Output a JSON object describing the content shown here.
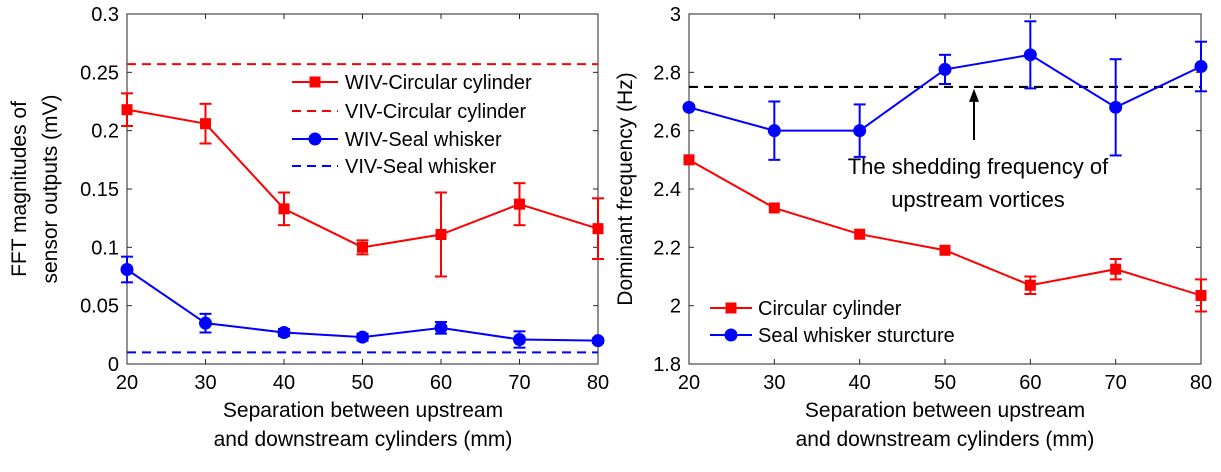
{
  "chart_data": [
    {
      "type": "line",
      "x": [
        20,
        30,
        40,
        50,
        60,
        70,
        80
      ],
      "xlim": [
        20,
        80
      ],
      "ylim": [
        0,
        0.3
      ],
      "xticks": [
        "20",
        "30",
        "40",
        "50",
        "60",
        "70",
        "80"
      ],
      "yticks": [
        "0",
        "0.05",
        "0.1",
        "0.15",
        "0.2",
        "0.25",
        "0.3"
      ],
      "xlabel": [
        "Separation between upstream",
        "and downstream cylinders (mm)"
      ],
      "ylabel": [
        "FFT magnitudes of",
        "sensor outputs (mV)"
      ],
      "legend_position": "top-right",
      "series": [
        {
          "name": "WIV-Circular cylinder",
          "color": "#ff0000",
          "marker": "square",
          "values": [
            0.218,
            0.206,
            0.133,
            0.1,
            0.111,
            0.137,
            0.116
          ],
          "errors": [
            0.014,
            0.017,
            0.014,
            0.006,
            0.036,
            0.018,
            0.026
          ]
        },
        {
          "name": "VIV-Circular cylinder",
          "color": "#ff0000",
          "dashed": true,
          "constant": 0.257
        },
        {
          "name": "WIV-Seal whisker",
          "color": "#0000ff",
          "marker": "circle",
          "values": [
            0.081,
            0.035,
            0.027,
            0.023,
            0.031,
            0.021,
            0.02
          ],
          "errors": [
            0.011,
            0.008,
            0.003,
            0.003,
            0.005,
            0.007,
            0.002
          ]
        },
        {
          "name": "VIV-Seal whisker",
          "color": "#0000ff",
          "dashed": true,
          "constant": 0.01
        }
      ]
    },
    {
      "type": "line",
      "x": [
        20,
        30,
        40,
        50,
        60,
        70,
        80
      ],
      "xlim": [
        20,
        80
      ],
      "ylim": [
        1.8,
        3.0
      ],
      "xticks": [
        "20",
        "30",
        "40",
        "50",
        "60",
        "70",
        "80"
      ],
      "yticks": [
        "1.8",
        "2",
        "2.2",
        "2.4",
        "2.6",
        "2.8",
        "3"
      ],
      "xlabel": [
        "Separation between upstream",
        "and downstream cylinders (mm)"
      ],
      "ylabel": [
        "Dominant frequency (Hz)"
      ],
      "legend_position": "bottom-left",
      "annotation": [
        "The shedding frequency of",
        "upstream vortices"
      ],
      "reference_line": {
        "value": 2.75,
        "color": "#000000",
        "dashed": true
      },
      "series": [
        {
          "name": "Circular cylinder",
          "color": "#ff0000",
          "marker": "square",
          "values": [
            2.5,
            2.335,
            2.245,
            2.19,
            2.07,
            2.125,
            2.035
          ],
          "errors": [
            0,
            0,
            0,
            0,
            0.03,
            0.035,
            0.055
          ]
        },
        {
          "name": "Seal whisker sturcture",
          "color": "#0000ff",
          "marker": "circle",
          "values": [
            2.68,
            2.6,
            2.6,
            2.81,
            2.86,
            2.68,
            2.82
          ],
          "errors": [
            0,
            0.1,
            0.09,
            0.05,
            0.115,
            0.165,
            0.085
          ]
        }
      ]
    }
  ]
}
